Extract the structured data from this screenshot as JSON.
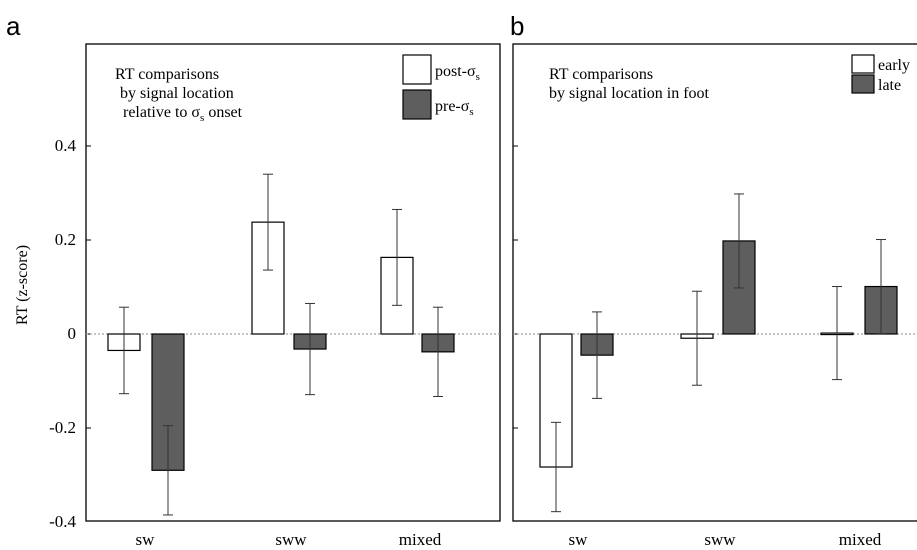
{
  "chart_data": [
    {
      "type": "bar",
      "panel_label": "a",
      "title_lines": [
        "RT comparisons",
        "by signal location",
        "relative to σ",
        "onset"
      ],
      "title_sub": "s",
      "ylabel": "RT (z-score)",
      "ylim": [
        -0.4,
        0.6
      ],
      "yticks": [
        "-0.4",
        "-0.2",
        "0",
        "0.2",
        "0.4"
      ],
      "categories": [
        "sw",
        "sww",
        "mixed"
      ],
      "legend_position": "top-right",
      "zero_line": "dotted",
      "series": [
        {
          "name": "post-σ",
          "name_sub": "s",
          "color": "#ffffff",
          "values": [
            -0.035,
            0.238,
            0.163
          ],
          "err": [
            0.092,
            0.102,
            0.102
          ]
        },
        {
          "name": "pre-σ",
          "name_sub": "s",
          "color": "#5e5e5e",
          "values": [
            -0.29,
            -0.032,
            -0.038
          ],
          "err": [
            0.095,
            0.097,
            0.095
          ]
        }
      ]
    },
    {
      "type": "bar",
      "panel_label": "b",
      "title_lines": [
        "RT comparisons",
        "by signal location in foot"
      ],
      "ylim": [
        -0.4,
        0.6
      ],
      "categories": [
        "sw",
        "sww",
        "mixed"
      ],
      "legend_position": "top-right",
      "zero_line": "dotted",
      "series": [
        {
          "name": "early",
          "color": "#ffffff",
          "values": [
            -0.283,
            -0.009,
            0.002
          ],
          "err": [
            0.095,
            0.1,
            0.099
          ]
        },
        {
          "name": "late",
          "color": "#5e5e5e",
          "values": [
            -0.045,
            0.198,
            0.101
          ],
          "err": [
            0.092,
            0.1,
            0.1
          ]
        }
      ]
    }
  ]
}
